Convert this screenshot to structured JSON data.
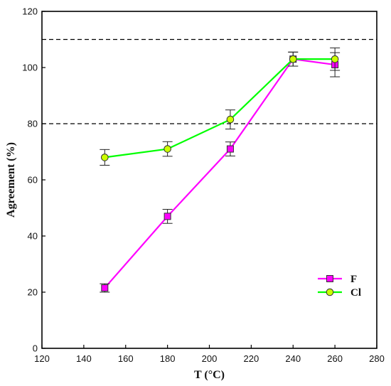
{
  "chart_data": {
    "type": "line",
    "xlabel": "T (°C)",
    "ylabel": "Agreement (%)",
    "xlim": [
      120,
      280
    ],
    "ylim": [
      0,
      120
    ],
    "x_ticks": [
      120,
      140,
      160,
      180,
      200,
      220,
      240,
      260,
      280
    ],
    "y_ticks": [
      0,
      20,
      40,
      60,
      80,
      100,
      120
    ],
    "reference_lines": [
      80,
      110
    ],
    "grid": false,
    "legend_position": "bottom-right",
    "series": [
      {
        "name": "F",
        "color": "#ff00ff",
        "marker": "square",
        "x": [
          150,
          180,
          210,
          240,
          260
        ],
        "y": [
          21.5,
          47,
          71,
          103,
          101
        ],
        "error": [
          1.5,
          2.5,
          2.5,
          2.5,
          4.3
        ]
      },
      {
        "name": "Cl",
        "color": "#00ff00",
        "marker": "circle",
        "marker_fill": "#ccff00",
        "x": [
          150,
          180,
          210,
          240,
          260
        ],
        "y": [
          68,
          71,
          81.5,
          103,
          103
        ],
        "error": [
          2.8,
          2.6,
          3.4,
          2.5,
          4.0
        ]
      }
    ]
  }
}
